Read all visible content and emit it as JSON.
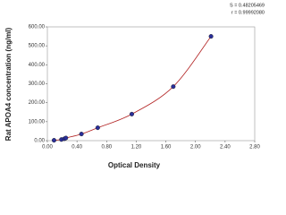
{
  "chart_data": {
    "type": "scatter",
    "x_label": "Optical Density",
    "y_label": "Rat APOA4 concentration (ng/ml)",
    "annotations": [
      "S = 0.48205469",
      "r = 0.99992080"
    ],
    "series": [
      {
        "color": "#2a2f9a",
        "x": [
          0.09,
          0.19,
          0.23,
          0.25,
          0.46,
          0.68,
          1.14,
          1.7,
          2.21
        ],
        "values": [
          2,
          6,
          10,
          14,
          35,
          68,
          140,
          285,
          550
        ]
      }
    ],
    "fit_color": "#b22222",
    "xlim": [
      0,
      2.8
    ],
    "xticks": [
      {
        "value": 0,
        "label": "0.00"
      },
      {
        "value": 0.4,
        "label": "0.40"
      },
      {
        "value": 0.8,
        "label": "0.80"
      },
      {
        "value": 1.2,
        "label": "1.20"
      },
      {
        "value": 1.6,
        "label": "1.60"
      },
      {
        "value": 2.0,
        "label": "2.00"
      },
      {
        "value": 2.4,
        "label": "2.40"
      },
      {
        "value": 2.8,
        "label": "2.80"
      }
    ],
    "ylim": [
      0,
      600
    ],
    "yticks": [
      {
        "value": 0,
        "label": "0.00"
      },
      {
        "value": 100,
        "label": "100.00"
      },
      {
        "value": 200,
        "label": "200.00"
      },
      {
        "value": 300,
        "label": "300.00"
      },
      {
        "value": 400,
        "label": "400.00"
      },
      {
        "value": 500,
        "label": "500.00"
      },
      {
        "value": 600,
        "label": "600.00"
      }
    ],
    "grid": false
  }
}
